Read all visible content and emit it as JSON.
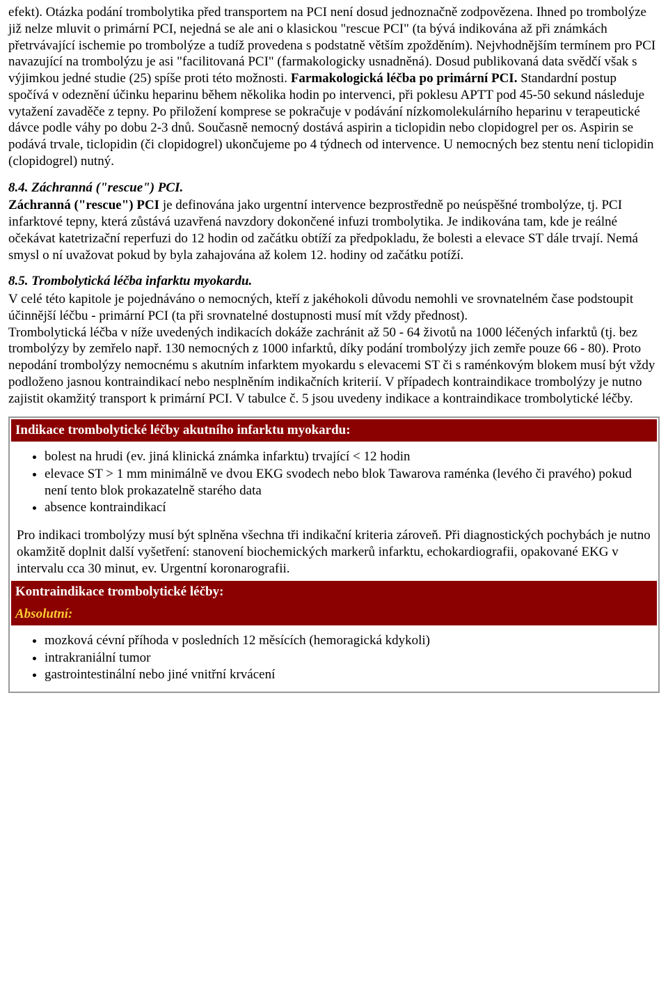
{
  "para1": "efekt). Otázka podání trombolytika před transportem na PCI není dosud jednoznačně zodpovězena. Ihned po trombolýze již nelze mluvit o primární PCI, nejedná se ale ani o klasickou \"rescue PCI\" (ta bývá indikována až při známkách přetrvávající ischemie po trombolýze a tudíž provedena s podstatně větším zpožděním). Nejvhodnějším termínem pro PCI navazující na trombolýzu je asi \"facilitovaná PCI\" (farmakologicky usnadněná). Dosud publikovaná data svědčí však s výjimkou jedné studie (25) spíše proti této možnosti. ",
  "para1_bold": "Farmakologická léčba po primární PCI.",
  "para1_cont": " Standardní postup spočívá v odeznění účinku heparinu během několika hodin po intervenci, při poklesu APTT pod 45-50 sekund následuje vytažení zavaděče z tepny. Po přiložení komprese se pokračuje v podávání nízkomolekulárního heparinu v terapeutické dávce podle váhy po dobu 2-3 dnů. Současně nemocný dostává aspirin a ticlopidin nebo clopidogrel per os. Aspirin se podává trvale, ticlopidin (či clopidogrel) ukončujeme po 4 týdnech od intervence. U nemocných bez stentu není ticlopidin (clopidogrel) nutný.",
  "heading84": "8.4. Záchranná (\"rescue\") PCI.",
  "para84_bold": "Záchranná (\"rescue\") PCI",
  "para84_rest": " je definována jako urgentní intervence bezprostředně po neúspěšné trombolýze, tj. PCI infarktové tepny, která zůstává uzavřená navzdory dokončené infuzi trombolytika. Je indikována tam, kde je reálné očekávat katetrizační reperfuzi do 12 hodin od začátku obtíží za předpokladu, že bolesti a elevace ST dále trvají. Nemá smysl o ní uvažovat pokud by byla zahajována až kolem 12. hodiny od začátku potíží.",
  "heading85": "8.5. Trombolytická léčba infarktu myokardu.",
  "para85a": "V celé této kapitole je pojednáváno o nemocných, kteří z jakéhokoli důvodu nemohli ve srovnatelném čase podstoupit účinnější léčbu - primární PCI (ta při srovnatelné dostupnosti musí mít vždy přednost).",
  "para85b": "Trombolytická léčba v níže uvedených indikacích dokáže zachránit až 50 - 64 životů na 1000 léčených infarktů (tj. bez trombolýzy by zemřelo např. 130 nemocných z 1000 infarktů, díky podání trombolýzy jich zemře pouze 66 - 80). Proto nepodání trombolýzy nemocnému s akutním infarktem myokardu s elevacemi ST či s raménkovým blokem musí být vždy podloženo jasnou kontraindikací nebo nesplněním indikačních kriterií. V případech kontraindikace trombolýzy je nutno zajistit okamžitý transport k primární PCI. V tabulce č. 5 jsou uvedeny indikace a kontraindikace trombolytické léčby.",
  "table": {
    "header1": "Indikace trombolytické léčby akutního infarktu myokardu:",
    "indications": [
      "bolest na hrudi (ev. jiná klinická známka infarktu) trvající < 12 hodin",
      "elevace ST > 1 mm minimálně ve dvou EKG svodech nebo blok Tawarova raménka (levého či pravého) pokud není tento blok prokazatelně starého data",
      "absence kontraindikací"
    ],
    "note": "Pro indikaci trombolýzy musí být splněna všechna tři indikační kriteria zároveň. Při diagnostických pochybách je nutno okamžitě doplnit další vyšetření: stanovení biochemických markerů infarktu, echokardiografii, opakované EKG v intervalu cca 30 minut, ev. Urgentní koronarografii.",
    "header2": "Kontraindikace trombolytické léčby:",
    "sub_absolute": "Absolutní:",
    "absolute_items": [
      "mozková cévní příhoda v posledních 12 měsících (hemoragická kdykoli)",
      "intrakraniální tumor",
      "gastrointestinální nebo jiné vnitřní krvácení"
    ]
  }
}
